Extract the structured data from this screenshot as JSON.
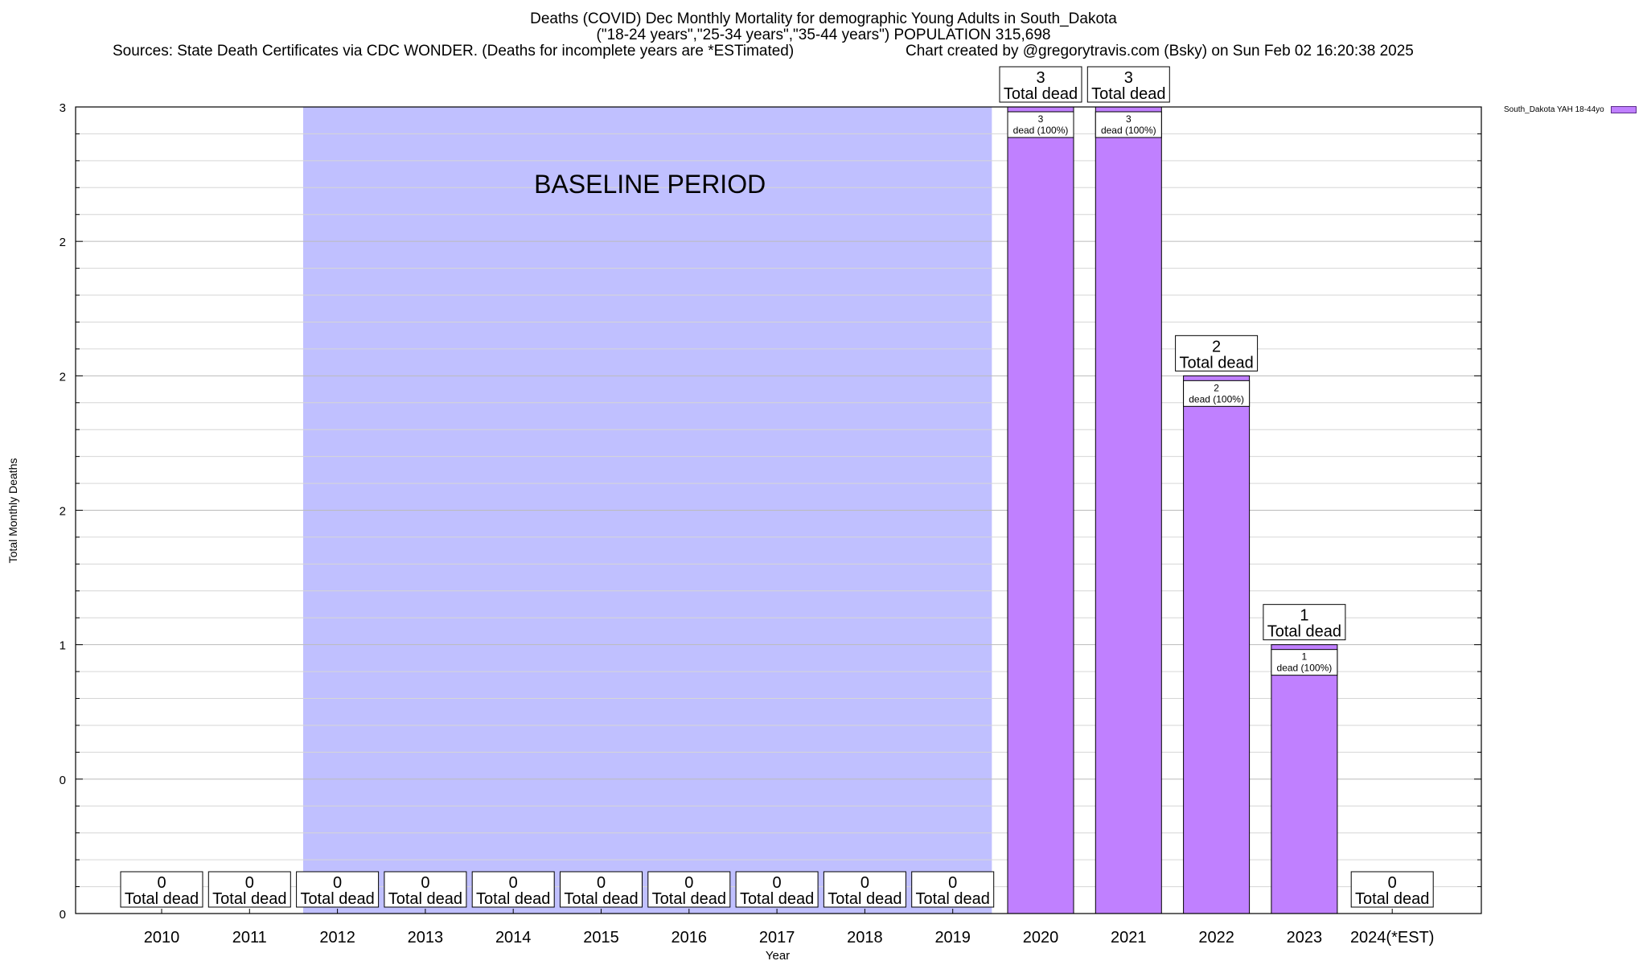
{
  "header": {
    "title_line1": "Deaths (COVID) Dec Monthly Mortality for demographic Young Adults in South_Dakota",
    "title_line2": "(\"18-24 years\",\"25-34 years\",\"35-44 years\") POPULATION 315,698",
    "sources": "Sources: State Death Certificates via CDC WONDER. (Deaths for incomplete years are *ESTimated)",
    "credit": "Chart created by @gregorytravis.com (Bsky) on Sun Feb 02 16:20:38 2025"
  },
  "chart_data": {
    "type": "bar",
    "title": "Deaths (COVID) Dec Monthly Mortality for demographic Young Adults in South_Dakota",
    "xlabel": "Year",
    "ylabel": "Total Monthly Deaths",
    "categories": [
      "2010",
      "2011",
      "2012",
      "2013",
      "2014",
      "2015",
      "2016",
      "2017",
      "2018",
      "2019",
      "2020",
      "2021",
      "2022",
      "2023",
      "2024(*EST)"
    ],
    "series": [
      {
        "name": "South_Dakota YAH 18-44yo",
        "color": "#c080ff",
        "values": [
          0,
          0,
          0,
          0,
          0,
          0,
          0,
          0,
          0,
          0,
          3,
          3,
          2,
          1,
          0
        ]
      }
    ],
    "ylim": [
      0,
      3
    ],
    "y_tick_labels": [
      "0",
      "0",
      "1",
      "2",
      "2",
      "2",
      "3"
    ],
    "y_tick_values": [
      0,
      0.5,
      1,
      1.5,
      2,
      2.5,
      3
    ],
    "total_label_suffix": "Total dead",
    "segment_labels": [
      "3\ndead (100%)",
      "3\ndead (100%)",
      "2\ndead (100%)",
      "1\ndead (100%)"
    ],
    "baseline_period": {
      "label": "BASELINE PERIOD",
      "from": "2012",
      "to": "2019",
      "color": "#c0c0ff"
    },
    "grid": true,
    "legend_position": "top-right"
  }
}
